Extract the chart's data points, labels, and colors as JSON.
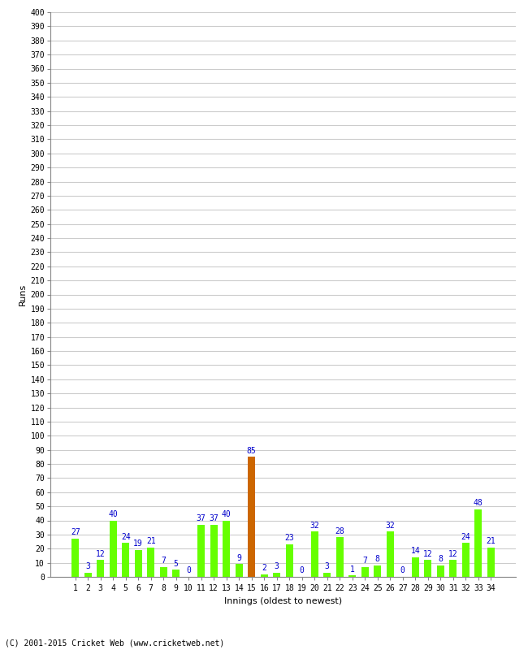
{
  "innings": [
    1,
    2,
    3,
    4,
    5,
    6,
    7,
    8,
    9,
    10,
    11,
    12,
    13,
    14,
    15,
    16,
    17,
    18,
    19,
    20,
    21,
    22,
    23,
    24,
    25,
    26,
    27,
    28,
    29,
    30,
    31,
    32,
    33,
    34
  ],
  "runs": [
    27,
    3,
    12,
    40,
    24,
    19,
    21,
    7,
    5,
    0,
    37,
    37,
    40,
    9,
    85,
    2,
    3,
    23,
    0,
    32,
    3,
    28,
    1,
    7,
    8,
    32,
    0,
    14,
    12,
    8,
    12,
    24,
    48,
    21
  ],
  "highlight_innings": 15,
  "bar_color_normal": "#66ff00",
  "bar_color_highlight": "#cc6600",
  "value_color": "#0000cc",
  "ylabel": "Runs",
  "xlabel": "Innings (oldest to newest)",
  "footer": "(C) 2001-2015 Cricket Web (www.cricketweb.net)",
  "ylim": [
    0,
    400
  ],
  "yticks": [
    0,
    10,
    20,
    30,
    40,
    50,
    60,
    70,
    80,
    90,
    100,
    110,
    120,
    130,
    140,
    150,
    160,
    170,
    180,
    190,
    200,
    210,
    220,
    230,
    240,
    250,
    260,
    270,
    280,
    290,
    300,
    310,
    320,
    330,
    340,
    350,
    360,
    370,
    380,
    390,
    400
  ],
  "bg_color": "#ffffff",
  "grid_color": "#cccccc",
  "label_fontsize": 8,
  "tick_fontsize": 7,
  "value_fontsize": 7,
  "footer_fontsize": 7
}
